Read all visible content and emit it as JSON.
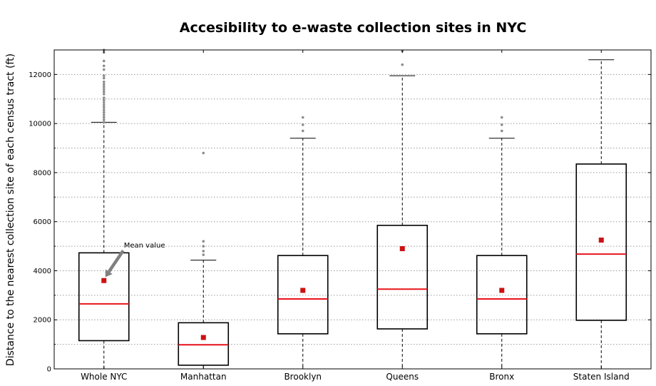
{
  "chart_data": {
    "type": "boxplot",
    "title": "Accesibility to e-waste collection sites in NYC",
    "xlabel": "",
    "ylabel": "Distance to the nearest collection site of each census tract (ft)",
    "ylim": [
      0,
      13000
    ],
    "yticks": [
      0,
      2000,
      4000,
      6000,
      8000,
      10000,
      12000
    ],
    "grid": true,
    "colors": {
      "box": "#000000",
      "median": "#e8141c",
      "mean": "#cc1111",
      "outlier": "#8c8c8c",
      "grid": "#9a9a9a",
      "annotation_arrow": "#808080"
    },
    "categories": [
      "Whole NYC",
      "Manhattan",
      "Brooklyn",
      "Queens",
      "Bronx",
      "Staten Island"
    ],
    "boxes": [
      {
        "name": "Whole NYC",
        "q1": 1150,
        "median": 2650,
        "q3": 4730,
        "whisker_low": 0,
        "whisker_high": 10050,
        "mean": 3600,
        "outliers": [
          10050,
          10150,
          10250,
          10350,
          10450,
          10550,
          10650,
          10750,
          10850,
          10950,
          11050,
          11200,
          11300,
          11400,
          11500,
          11600,
          11700,
          11850,
          11950,
          12200,
          12350,
          12550,
          12900,
          13000
        ]
      },
      {
        "name": "Manhattan",
        "q1": 150,
        "median": 980,
        "q3": 1880,
        "whisker_low": 0,
        "whisker_high": 4430,
        "mean": 1280,
        "outliers": [
          4650,
          4800,
          5000,
          5200,
          8800
        ]
      },
      {
        "name": "Brooklyn",
        "q1": 1430,
        "median": 2850,
        "q3": 4620,
        "whisker_low": 0,
        "whisker_high": 9400,
        "mean": 3200,
        "outliers": [
          9700,
          9950,
          10250
        ]
      },
      {
        "name": "Queens",
        "q1": 1630,
        "median": 3250,
        "q3": 5850,
        "whisker_low": 0,
        "whisker_high": 11950,
        "mean": 4900,
        "outliers": [
          12400,
          12950
        ]
      },
      {
        "name": "Bronx",
        "q1": 1430,
        "median": 2850,
        "q3": 4620,
        "whisker_low": 0,
        "whisker_high": 9400,
        "mean": 3200,
        "outliers": [
          9700,
          9950,
          10250
        ]
      },
      {
        "name": "Staten Island",
        "q1": 1980,
        "median": 4680,
        "q3": 8350,
        "whisker_low": 0,
        "whisker_high": 12600,
        "mean": 5250,
        "outliers": []
      }
    ],
    "annotations": [
      {
        "text": "Mean value",
        "target_category": "Whole NYC",
        "target_value": 3600
      }
    ]
  }
}
